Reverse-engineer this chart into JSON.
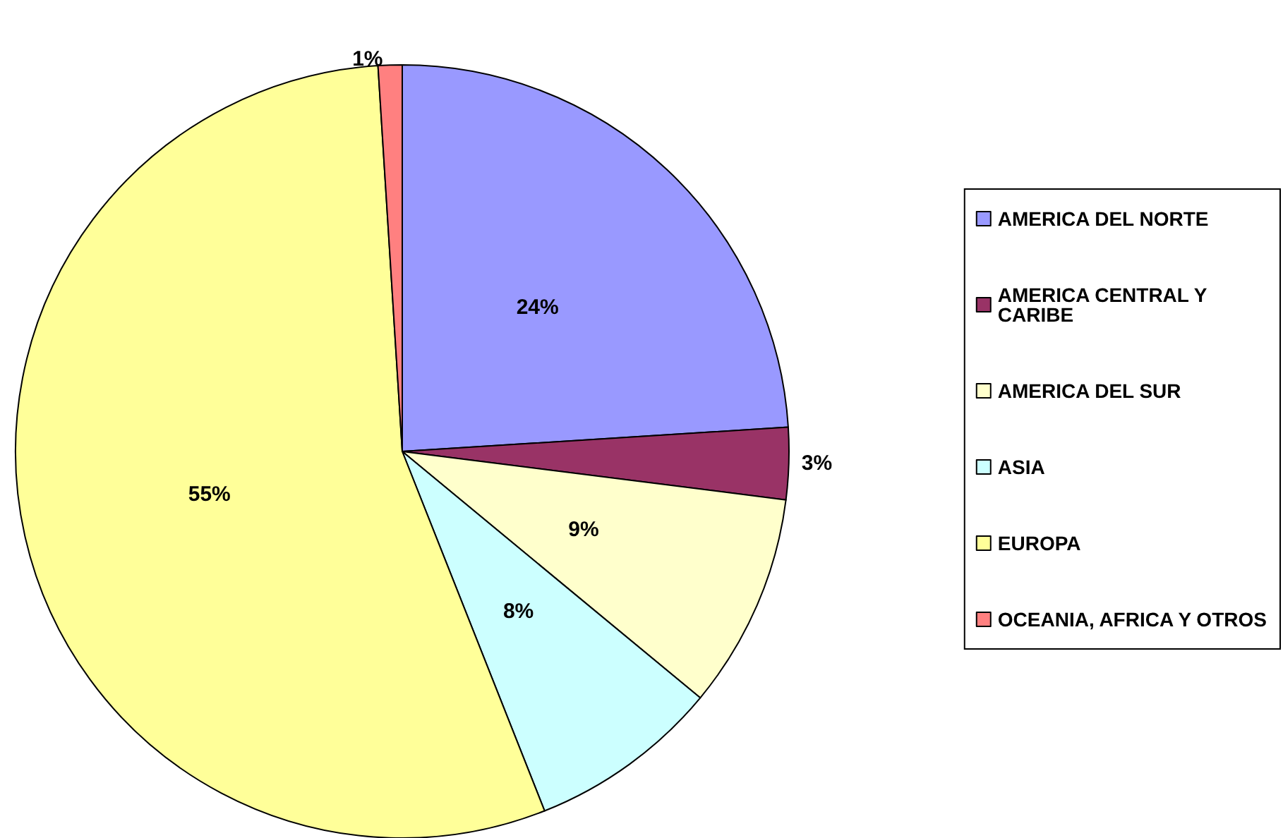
{
  "chart_data": {
    "type": "pie",
    "categories": [
      "AMERICA DEL NORTE",
      "AMERICA CENTRAL Y CARIBE",
      "AMERICA DEL SUR",
      "ASIA",
      "EUROPA",
      "OCEANIA, AFRICA Y OTROS"
    ],
    "values": [
      24,
      3,
      9,
      8,
      55,
      1
    ],
    "colors": [
      "#9999ff",
      "#993366",
      "#ffffcc",
      "#ccffff",
      "#ffff99",
      "#ff8080"
    ],
    "value_labels": [
      "24%",
      "3%",
      "9%",
      "8%",
      "55%",
      "1%"
    ],
    "legend": "right"
  }
}
